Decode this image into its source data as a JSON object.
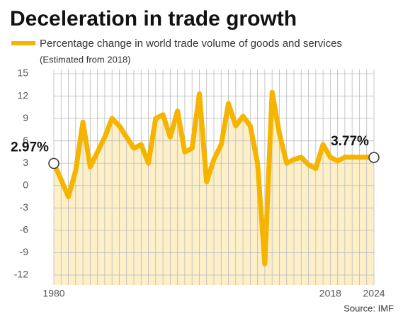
{
  "chart_data": {
    "type": "line",
    "title": "Deceleration in trade growth",
    "subtitle": "(Estimated from 2018)",
    "source": "Source: IMF",
    "series": [
      {
        "name": "Percentage change in world trade volume of goods and services",
        "color": "#f5b400",
        "values": [
          2.97,
          0.8,
          -1.5,
          2,
          8.5,
          2.5,
          4.5,
          6.5,
          9,
          8,
          6.5,
          5,
          5.5,
          3,
          9,
          9.5,
          6.5,
          10,
          4.5,
          5,
          12.3,
          0.5,
          3.5,
          5.5,
          11,
          8,
          9.3,
          8,
          3,
          -10.5,
          12.5,
          7,
          3,
          3.5,
          3.8,
          2.8,
          2.3,
          5.5,
          3.8,
          3.3,
          3.8,
          3.8,
          3.8,
          3.8,
          3.77
        ]
      }
    ],
    "x": [
      1980,
      1981,
      1982,
      1983,
      1984,
      1985,
      1986,
      1987,
      1988,
      1989,
      1990,
      1991,
      1992,
      1993,
      1994,
      1995,
      1996,
      1997,
      1998,
      1999,
      2000,
      2001,
      2002,
      2003,
      2004,
      2005,
      2006,
      2007,
      2008,
      2009,
      2010,
      2011,
      2012,
      2013,
      2014,
      2015,
      2016,
      2017,
      2018,
      2019,
      2020,
      2021,
      2022,
      2023,
      2024
    ],
    "annotations": [
      "2.97%",
      "3.77%"
    ],
    "fill_color": "#fdf0c8",
    "xlim": [
      1980,
      2024
    ],
    "xticks": [
      1980,
      2018,
      2024
    ],
    "ylim": [
      -12,
      15
    ],
    "yticks": [
      -12,
      -9,
      -6,
      -3,
      0,
      3,
      6,
      9,
      12,
      15
    ],
    "grid": true
  }
}
